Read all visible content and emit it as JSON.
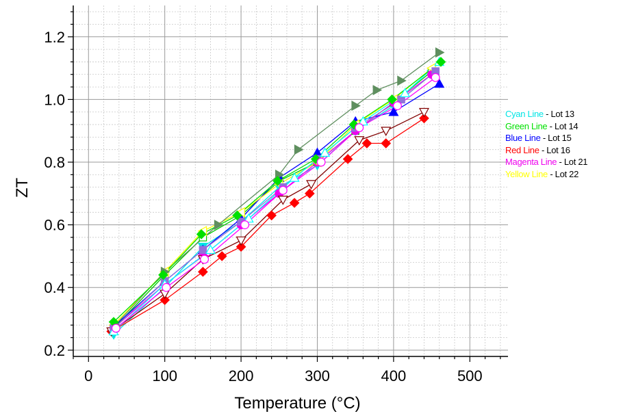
{
  "chart_data": {
    "type": "scatter",
    "title": "",
    "xlabel": "Temperature (°C)",
    "ylabel": "ZT",
    "xlim": [
      -20,
      550
    ],
    "ylim": [
      0.18,
      1.3
    ],
    "xticks": [
      0,
      100,
      200,
      300,
      400,
      500
    ],
    "xtick_labels": [
      "0",
      "100",
      "200",
      "300",
      "400",
      "500"
    ],
    "yticks": [
      0.2,
      0.4,
      0.6,
      0.8,
      1.0,
      1.2
    ],
    "ytick_labels": [
      "0.2",
      "0.4",
      "0.6",
      "0.8",
      "1.0",
      "1.2"
    ],
    "grid": true,
    "legend_position": "right",
    "legend": [
      {
        "name": "Cyan Line",
        "lot": "- Lot 13",
        "color": "#00e5e5"
      },
      {
        "name": "Green Line",
        "lot": "- Lot 14",
        "color": "#00e000"
      },
      {
        "name": "Blue Line",
        "lot": "- Lot 15",
        "color": "#0000ff"
      },
      {
        "name": "Red Line",
        "lot": "- Lot 16",
        "color": "#ff0000"
      },
      {
        "name": "Magenta Line",
        "lot": "- Lot 21",
        "color": "#ee00ee"
      },
      {
        "name": "Yellow Line",
        "lot": "- Lot 22",
        "color": "#ffff00"
      }
    ],
    "series": [
      {
        "color": "#00e5e5",
        "x": [
          33,
          100,
          150,
          200,
          250,
          300,
          350,
          400,
          450
        ],
        "y": [
          0.25,
          0.4,
          0.53,
          0.61,
          0.72,
          0.79,
          0.9,
          0.98,
          1.08
        ]
      },
      {
        "color": "#00c800",
        "x": [
          33,
          100,
          150,
          200,
          250,
          300,
          350,
          400,
          450
        ],
        "y": [
          0.27,
          0.44,
          0.56,
          0.63,
          0.74,
          0.8,
          0.9,
          0.99,
          1.09
        ]
      },
      {
        "color": "#0000ff",
        "x": [
          35,
          100,
          150,
          200,
          250,
          300,
          350,
          400,
          460
        ],
        "y": [
          0.28,
          0.42,
          0.52,
          0.62,
          0.75,
          0.83,
          0.93,
          0.96,
          1.05
        ]
      },
      {
        "color": "#ff0000",
        "x": [
          30,
          100,
          150,
          175,
          200,
          240,
          270,
          290,
          340,
          365,
          390,
          440
        ],
        "y": [
          0.26,
          0.36,
          0.45,
          0.5,
          0.53,
          0.63,
          0.67,
          0.7,
          0.81,
          0.86,
          0.86,
          0.94
        ]
      },
      {
        "color": "#ee00ee",
        "x": [
          33,
          100,
          150,
          200,
          250,
          300,
          350,
          400,
          450
        ],
        "y": [
          0.27,
          0.41,
          0.5,
          0.6,
          0.7,
          0.8,
          0.9,
          0.99,
          1.08
        ]
      },
      {
        "color": "#ffff00",
        "x": [
          33,
          100,
          150,
          200,
          250,
          300,
          350,
          400,
          450
        ],
        "y": [
          0.28,
          0.45,
          0.58,
          0.64,
          0.73,
          0.8,
          0.92,
          1.0,
          1.1
        ]
      },
      {
        "color": "#5f8f5f",
        "x": [
          35,
          100,
          170,
          250,
          275,
          350,
          378,
          410,
          460
        ],
        "y": [
          0.28,
          0.45,
          0.6,
          0.76,
          0.84,
          0.98,
          1.03,
          1.06,
          1.15
        ]
      },
      {
        "color": "#800000",
        "x": [
          30,
          100,
          150,
          200,
          255,
          292,
          355,
          390,
          440
        ],
        "y": [
          0.26,
          0.38,
          0.49,
          0.55,
          0.68,
          0.73,
          0.87,
          0.9,
          0.96
        ]
      },
      {
        "color": "#9370db",
        "x": [
          33,
          100,
          150,
          200,
          255,
          300,
          350,
          410,
          455
        ],
        "y": [
          0.27,
          0.42,
          0.52,
          0.61,
          0.72,
          0.81,
          0.91,
          1.0,
          1.09
        ]
      },
      {
        "color": "#00ffff",
        "x": [
          33,
          100,
          160,
          210,
          270,
          310,
          360,
          415,
          460
        ],
        "y": [
          0.26,
          0.41,
          0.52,
          0.62,
          0.75,
          0.83,
          0.93,
          1.02,
          1.12
        ]
      },
      {
        "color": "#00e000",
        "x": [
          33,
          98,
          148,
          195,
          248,
          298,
          348,
          398,
          462
        ],
        "y": [
          0.29,
          0.44,
          0.57,
          0.63,
          0.74,
          0.81,
          0.92,
          1.0,
          1.12
        ]
      },
      {
        "color": "#ff00ff",
        "x": [
          36,
          102,
          152,
          205,
          255,
          305,
          355,
          405,
          455
        ],
        "y": [
          0.27,
          0.4,
          0.49,
          0.6,
          0.71,
          0.8,
          0.91,
          0.98,
          1.07
        ]
      }
    ]
  }
}
